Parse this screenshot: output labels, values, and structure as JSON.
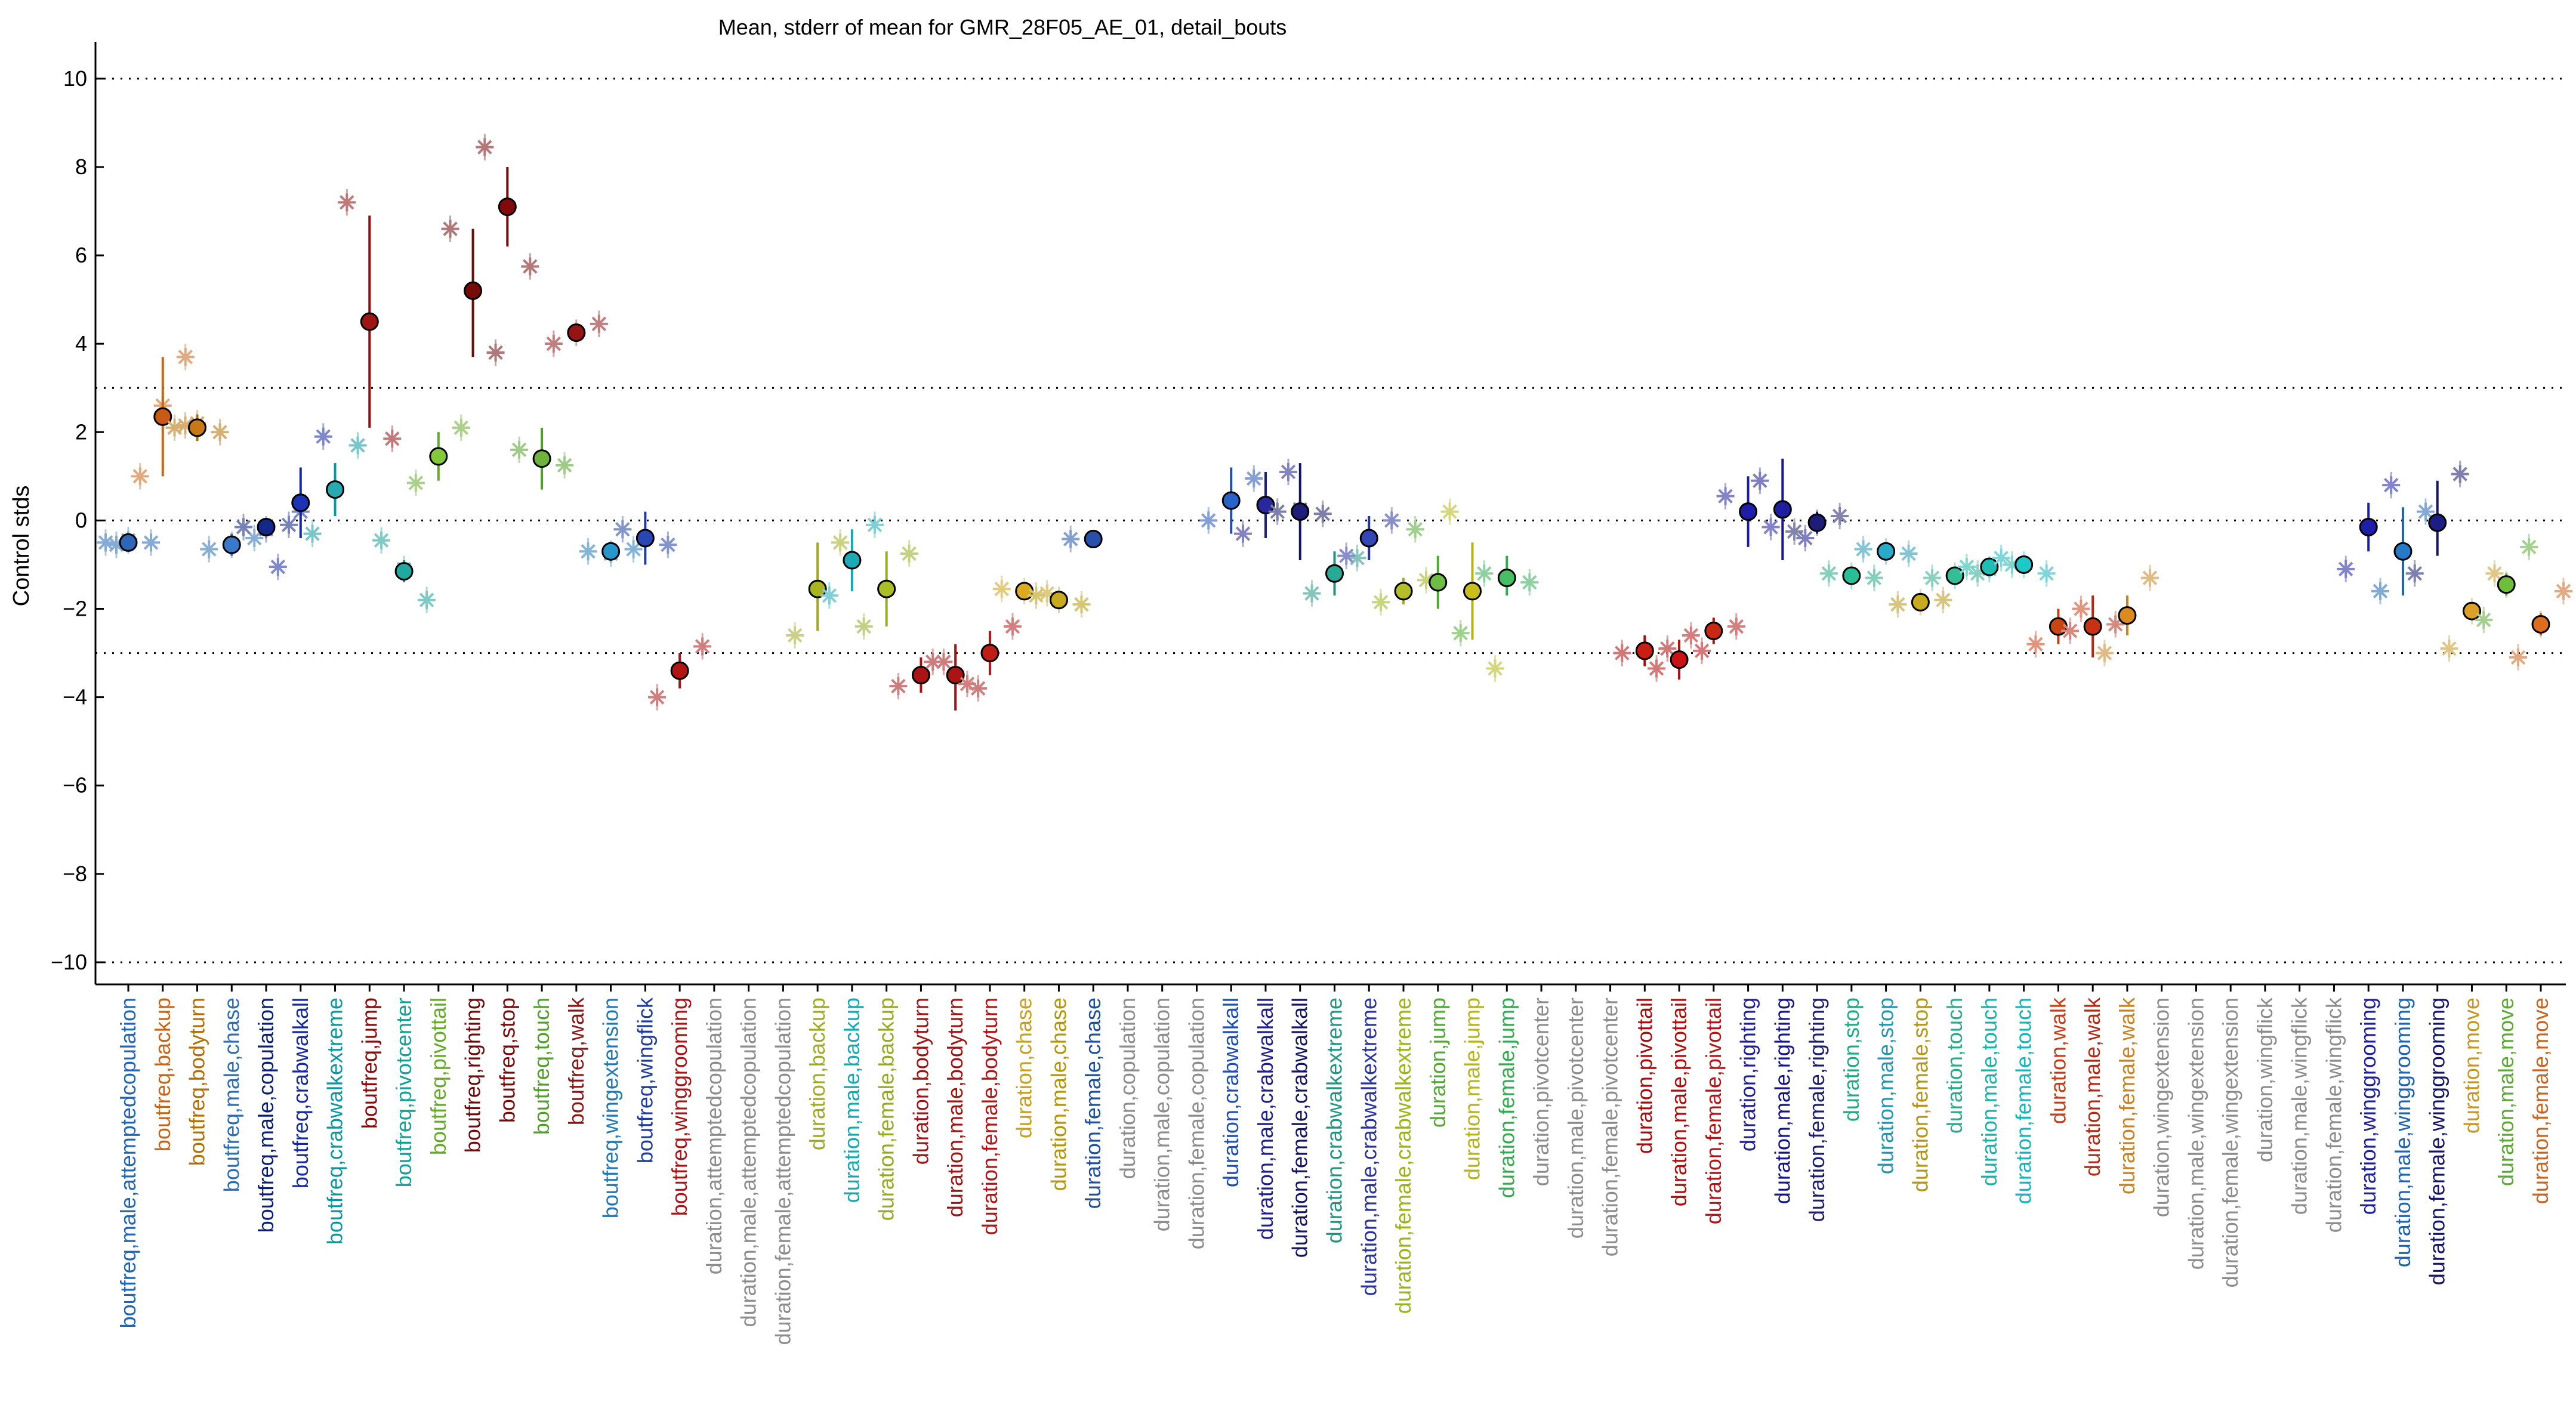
{
  "chart_data": {
    "type": "scatter",
    "title": "Mean, stderr of mean for GMR_28F05_AE_01, detail_bouts",
    "xlabel": "",
    "ylabel": "Control stds",
    "ylim": [
      -10.5,
      10.7
    ],
    "yticks": [
      -10,
      -8,
      -6,
      -4,
      -2,
      0,
      2,
      4,
      6,
      8,
      10
    ],
    "reference_lines": [
      10,
      3,
      0,
      -3,
      -10
    ],
    "grid": false,
    "marker_notes": "filled circles = mean with stderr bar; asterisks = individual experiment means",
    "categories": [
      {
        "label": "boutfreq,male,attemptedcopulation",
        "color": "#2066b8",
        "mean": -0.5,
        "lo": -0.6,
        "hi": -0.4,
        "face": "#2f67b8",
        "points": [
          -0.5,
          -0.5,
          -0.45,
          -0.55
        ]
      },
      {
        "label": "boutfreq,backup",
        "color": "#c86414",
        "mean": 2.35,
        "lo": 1.0,
        "hi": 3.7,
        "face": "#c85a14",
        "points": [
          1.0,
          3.7,
          2.6
        ]
      },
      {
        "label": "boutfreq,bodyturn",
        "color": "#b46e00",
        "mean": 2.1,
        "lo": 1.8,
        "hi": 2.4,
        "face": "#c87814",
        "points": [
          2.1,
          2.0,
          2.2,
          2.15
        ]
      },
      {
        "label": "boutfreq,male,chase",
        "color": "#2a6eb4",
        "mean": -0.55,
        "lo": -0.8,
        "hi": -0.3,
        "face": "#3a78c8",
        "points": [
          -0.65,
          -0.4,
          -0.55
        ]
      },
      {
        "label": "boutfreq,male,copulation",
        "color": "#0a1e78",
        "mean": -0.15,
        "lo": -0.2,
        "hi": -0.1,
        "face": "#14288c",
        "points": [
          -0.15,
          -0.1,
          -0.2
        ]
      },
      {
        "label": "boutfreq,crabwalkall",
        "color": "#1428a0",
        "mean": 0.4,
        "lo": -0.4,
        "hi": 1.2,
        "face": "#1e32b4",
        "points": [
          -1.05,
          1.9,
          0.2
        ]
      },
      {
        "label": "boutfreq,crabwalkextreme",
        "color": "#0a96a0",
        "mean": 0.7,
        "lo": 0.1,
        "hi": 1.3,
        "face": "#28aab4",
        "points": [
          -0.3,
          1.7,
          0.7
        ]
      },
      {
        "label": "boutfreq,jump",
        "color": "#8c0a0a",
        "mean": 4.5,
        "lo": 2.1,
        "hi": 6.9,
        "face": "#a01414",
        "points": [
          7.2,
          1.85,
          4.5
        ]
      },
      {
        "label": "boutfreq,pivotcenter",
        "color": "#14a096",
        "mean": -1.15,
        "lo": -1.4,
        "hi": -0.9,
        "face": "#1eaaa0",
        "points": [
          -0.45,
          -1.8,
          -1.1
        ]
      },
      {
        "label": "boutfreq,pivottail",
        "color": "#64aa28",
        "mean": 1.45,
        "lo": 0.9,
        "hi": 2.0,
        "face": "#82c83c",
        "points": [
          0.85,
          2.1,
          1.45
        ]
      },
      {
        "label": "boutfreq,righting",
        "color": "#6e0a0a",
        "mean": 5.2,
        "lo": 3.7,
        "hi": 6.6,
        "face": "#780a0a",
        "points": [
          6.6,
          3.8,
          5.2
        ]
      },
      {
        "label": "boutfreq,stop",
        "color": "#780a0a",
        "mean": 7.1,
        "lo": 6.2,
        "hi": 8.0,
        "face": "#820a0a",
        "points": [
          8.45,
          5.75,
          7.1
        ]
      },
      {
        "label": "boutfreq,touch",
        "color": "#50a028",
        "mean": 1.4,
        "lo": 0.7,
        "hi": 2.1,
        "face": "#6eb43c",
        "points": [
          1.6,
          1.25,
          1.4
        ]
      },
      {
        "label": "boutfreq,walk",
        "color": "#8c1414",
        "mean": 4.25,
        "lo": 4.1,
        "hi": 4.4,
        "face": "#961414",
        "points": [
          4.0,
          4.45,
          4.25
        ]
      },
      {
        "label": "boutfreq,wingextension",
        "color": "#1e78b4",
        "mean": -0.7,
        "lo": -0.8,
        "hi": -0.6,
        "face": "#2896c8",
        "points": [
          -0.7,
          -0.65,
          -0.75
        ]
      },
      {
        "label": "boutfreq,wingflick",
        "color": "#1e3ca0",
        "mean": -0.4,
        "lo": -1.0,
        "hi": 0.2,
        "face": "#2846b4",
        "points": [
          -0.2,
          -0.55,
          -0.4
        ]
      },
      {
        "label": "boutfreq,winggrooming",
        "color": "#aa1414",
        "mean": -3.4,
        "lo": -3.8,
        "hi": -3.0,
        "face": "#b41414",
        "points": [
          -4.0,
          -2.85,
          -3.4
        ]
      },
      {
        "label": "duration,attemptedcopulation",
        "color": "#8c8c8c",
        "empty": true
      },
      {
        "label": "duration,male,attemptedcopulation",
        "color": "#8c8c8c",
        "empty": true
      },
      {
        "label": "duration,female,attemptedcopulation",
        "color": "#8c8c8c",
        "empty": true
      },
      {
        "label": "duration,backup",
        "color": "#a0aa1e",
        "mean": -1.55,
        "lo": -2.5,
        "hi": -0.5,
        "face": "#aab41e",
        "points": [
          -2.6,
          -0.5,
          -1.55
        ]
      },
      {
        "label": "duration,male,backup",
        "color": "#14aab4",
        "mean": -0.9,
        "lo": -1.6,
        "hi": -0.2,
        "face": "#1eaab4",
        "points": [
          -1.7,
          -0.1,
          -0.9
        ]
      },
      {
        "label": "duration,female,backup",
        "color": "#96aa1e",
        "mean": -1.55,
        "lo": -2.4,
        "hi": -0.7,
        "face": "#aabe28",
        "points": [
          -2.4,
          -0.75,
          -1.55
        ]
      },
      {
        "label": "duration,bodyturn",
        "color": "#a01414",
        "mean": -3.5,
        "lo": -3.9,
        "hi": -3.1,
        "face": "#aa1414",
        "points": [
          -3.75,
          -3.2,
          -3.5
        ]
      },
      {
        "label": "duration,male,bodyturn",
        "color": "#a01414",
        "mean": -3.5,
        "lo": -4.3,
        "hi": -2.8,
        "face": "#aa1414",
        "points": [
          -3.2,
          -3.8,
          -3.5
        ]
      },
      {
        "label": "duration,female,bodyturn",
        "color": "#b41414",
        "mean": -3.0,
        "lo": -3.5,
        "hi": -2.5,
        "face": "#be1e14",
        "points": [
          -3.7,
          -2.4,
          -3.0
        ]
      },
      {
        "label": "duration,chase",
        "color": "#c8a014",
        "mean": -1.6,
        "lo": -1.7,
        "hi": -1.5,
        "face": "#dcaa1e",
        "points": [
          -1.55,
          -1.65,
          -1.6
        ]
      },
      {
        "label": "duration,male,chase",
        "color": "#b49600",
        "mean": -1.8,
        "lo": -2.0,
        "hi": -1.6,
        "face": "#c8aa1e",
        "points": [
          -1.7,
          -1.9,
          -1.8
        ]
      },
      {
        "label": "duration,female,chase",
        "color": "#1e50a0",
        "mean": -0.42,
        "lo": -0.5,
        "hi": -0.35,
        "face": "#2850aa",
        "points": [
          -0.42
        ]
      },
      {
        "label": "duration,copulation",
        "color": "#8c8c8c",
        "empty": true
      },
      {
        "label": "duration,male,copulation",
        "color": "#8c8c8c",
        "empty": true
      },
      {
        "label": "duration,female,copulation",
        "color": "#8c8c8c",
        "empty": true
      },
      {
        "label": "duration,crabwalkall",
        "color": "#1e50b4",
        "mean": 0.45,
        "lo": -0.3,
        "hi": 1.2,
        "face": "#2864c8",
        "points": [
          0.0,
          0.95,
          0.45
        ]
      },
      {
        "label": "duration,male,crabwalkall",
        "color": "#1e1e8c",
        "mean": 0.35,
        "lo": -0.4,
        "hi": 1.1,
        "face": "#28289c",
        "points": [
          -0.3,
          1.1,
          0.35
        ]
      },
      {
        "label": "duration,female,crabwalkall",
        "color": "#141464",
        "mean": 0.2,
        "lo": -0.9,
        "hi": 1.3,
        "face": "#1e1e78",
        "points": [
          0.2,
          0.15,
          0.25
        ]
      },
      {
        "label": "duration,crabwalkextreme",
        "color": "#1e9682",
        "mean": -1.2,
        "lo": -1.7,
        "hi": -0.7,
        "face": "#28aa96",
        "points": [
          -1.65,
          -0.85,
          -1.2
        ]
      },
      {
        "label": "duration,male,crabwalkextreme",
        "color": "#2832a0",
        "mean": -0.4,
        "lo": -0.9,
        "hi": 0.1,
        "face": "#3246b4",
        "points": [
          -0.8,
          0.0,
          -0.4
        ]
      },
      {
        "label": "duration,female,crabwalkextreme",
        "color": "#9ab414",
        "mean": -1.6,
        "lo": -1.9,
        "hi": -1.3,
        "face": "#b4be28",
        "points": [
          -1.85,
          -1.35,
          -1.6
        ]
      },
      {
        "label": "duration,jump",
        "color": "#50aa32",
        "mean": -1.4,
        "lo": -2.0,
        "hi": -0.8,
        "face": "#6ebe46",
        "points": [
          -0.2,
          -2.55,
          -1.4
        ]
      },
      {
        "label": "duration,male,jump",
        "color": "#b4b414",
        "mean": -1.6,
        "lo": -2.7,
        "hi": -0.5,
        "face": "#c8be1e",
        "points": [
          0.2,
          -3.35,
          -1.6
        ]
      },
      {
        "label": "duration,female,jump",
        "color": "#32aa50",
        "mean": -1.3,
        "lo": -1.7,
        "hi": -0.8,
        "face": "#46be64",
        "points": [
          -1.2,
          -1.4,
          -1.3
        ]
      },
      {
        "label": "duration,pivotcenter",
        "color": "#8c8c8c",
        "empty": true
      },
      {
        "label": "duration,male,pivotcenter",
        "color": "#8c8c8c",
        "empty": true
      },
      {
        "label": "duration,female,pivotcenter",
        "color": "#8c8c8c",
        "empty": true
      },
      {
        "label": "duration,pivottail",
        "color": "#aa0a0a",
        "mean": -2.95,
        "lo": -3.3,
        "hi": -2.6,
        "face": "#c81e14",
        "points": [
          -3.0,
          -2.9,
          -2.95
        ]
      },
      {
        "label": "duration,male,pivottail",
        "color": "#b40a0a",
        "mean": -3.15,
        "lo": -3.6,
        "hi": -2.7,
        "face": "#c81414",
        "points": [
          -3.35,
          -2.95,
          -3.15
        ]
      },
      {
        "label": "duration,female,pivottail",
        "color": "#b41414",
        "mean": -2.5,
        "lo": -2.8,
        "hi": -2.2,
        "face": "#c82814",
        "points": [
          -2.6,
          -2.4,
          -2.5
        ]
      },
      {
        "label": "duration,righting",
        "color": "#1e1e96",
        "mean": 0.2,
        "lo": -0.6,
        "hi": 1.0,
        "face": "#1e1eaa",
        "points": [
          0.55,
          -0.15,
          0.2
        ]
      },
      {
        "label": "duration,male,righting",
        "color": "#14148c",
        "mean": 0.25,
        "lo": -0.9,
        "hi": 1.4,
        "face": "#1e1ea0",
        "points": [
          0.9,
          -0.4,
          0.25
        ]
      },
      {
        "label": "duration,female,righting",
        "color": "#1e1e6e",
        "mean": -0.05,
        "lo": -0.3,
        "hi": 0.2,
        "face": "#1e1e78",
        "points": [
          -0.25,
          0.1,
          -0.05
        ]
      },
      {
        "label": "duration,stop",
        "color": "#1eaa82",
        "mean": -1.25,
        "lo": -1.35,
        "hi": -1.15,
        "face": "#28be96",
        "points": [
          -1.2,
          -1.3,
          -1.25
        ]
      },
      {
        "label": "duration,male,stop",
        "color": "#1e96b4",
        "mean": -0.7,
        "lo": -0.8,
        "hi": -0.6,
        "face": "#28aac8",
        "points": [
          -0.65,
          -0.75,
          -0.7
        ]
      },
      {
        "label": "duration,female,stop",
        "color": "#b49614",
        "mean": -1.85,
        "lo": -1.95,
        "hi": -1.75,
        "face": "#c8aa1e",
        "points": [
          -1.9,
          -1.8,
          -1.85
        ]
      },
      {
        "label": "duration,touch",
        "color": "#28aa8c",
        "mean": -1.25,
        "lo": -1.35,
        "hi": -1.15,
        "face": "#32be96",
        "points": [
          -1.3,
          -1.2,
          -1.25
        ]
      },
      {
        "label": "duration,male,touch",
        "color": "#14b4aa",
        "mean": -1.05,
        "lo": -1.1,
        "hi": -1.0,
        "face": "#1ebeb4",
        "points": [
          -1.05,
          -1.0,
          -1.1
        ]
      },
      {
        "label": "duration,female,touch",
        "color": "#14b4be",
        "mean": -1.0,
        "lo": -1.2,
        "hi": -0.8,
        "face": "#1ec8c8",
        "points": [
          -0.85,
          -1.2,
          -1.0
        ]
      },
      {
        "label": "duration,walk",
        "color": "#c83c14",
        "mean": -2.4,
        "lo": -2.8,
        "hi": -2.0,
        "face": "#c84614",
        "points": [
          -2.8,
          -2.0,
          -2.4
        ]
      },
      {
        "label": "duration,male,walk",
        "color": "#b42814",
        "mean": -2.4,
        "lo": -3.1,
        "hi": -1.7,
        "face": "#c83214",
        "points": [
          -2.5,
          -2.35,
          -2.4
        ]
      },
      {
        "label": "duration,female,walk",
        "color": "#c8821e",
        "mean": -2.15,
        "lo": -2.6,
        "hi": -1.7,
        "face": "#dc8c1e",
        "points": [
          -3.0,
          -1.3,
          -2.15
        ]
      },
      {
        "label": "duration,wingextension",
        "color": "#8c8c8c",
        "empty": true
      },
      {
        "label": "duration,male,wingextension",
        "color": "#8c8c8c",
        "empty": true
      },
      {
        "label": "duration,female,wingextension",
        "color": "#8c8c8c",
        "empty": true
      },
      {
        "label": "duration,wingflick",
        "color": "#8c8c8c",
        "empty": true
      },
      {
        "label": "duration,male,wingflick",
        "color": "#8c8c8c",
        "empty": true
      },
      {
        "label": "duration,female,wingflick",
        "color": "#8c8c8c",
        "empty": true
      },
      {
        "label": "duration,winggrooming",
        "color": "#1e1ea0",
        "mean": -0.15,
        "lo": -0.7,
        "hi": 0.4,
        "face": "#1e1eaa",
        "points": [
          -1.1,
          0.8,
          -0.15
        ]
      },
      {
        "label": "duration,male,winggrooming",
        "color": "#1e64b4",
        "mean": -0.7,
        "lo": -1.7,
        "hi": 0.3,
        "face": "#2878c8",
        "points": [
          -1.6,
          0.2,
          -0.7
        ]
      },
      {
        "label": "duration,female,winggrooming",
        "color": "#14146e",
        "mean": -0.05,
        "lo": -0.8,
        "hi": 0.9,
        "face": "#1e1e82",
        "points": [
          -1.2,
          1.05,
          -0.05
        ]
      },
      {
        "label": "duration,move",
        "color": "#c8961e",
        "mean": -2.05,
        "lo": -2.2,
        "hi": -1.9,
        "face": "#dca028",
        "points": [
          -2.9,
          -1.2,
          -2.05
        ]
      },
      {
        "label": "duration,male,move",
        "color": "#5aaa32",
        "mean": -1.45,
        "lo": -1.7,
        "hi": -1.2,
        "face": "#6ebe3c",
        "points": [
          -2.25,
          -0.6,
          -1.45
        ]
      },
      {
        "label": "duration,female,move",
        "color": "#c8641e",
        "mean": -2.35,
        "lo": -2.6,
        "hi": -2.1,
        "face": "#dc6e1e",
        "points": [
          -3.1,
          -1.6,
          -2.35
        ]
      }
    ]
  }
}
